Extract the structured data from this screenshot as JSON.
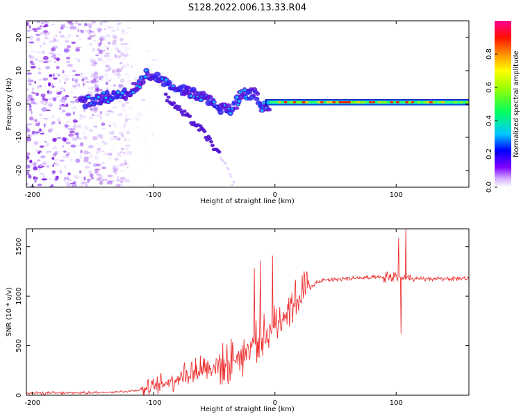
{
  "title": "S128.2022.006.13.33.R04",
  "chart_data": [
    {
      "type": "heatmap",
      "panel": "spectrogram",
      "xlabel": "Height of straight line (km)",
      "ylabel": "Frequency (Hz)",
      "xlim": [
        -205,
        160
      ],
      "ylim": [
        -25,
        25
      ],
      "x_ticks": [
        -200,
        -100,
        0,
        100
      ],
      "x_tick_labels": [
        "-200",
        "-100",
        "0",
        "100"
      ],
      "y_ticks": [
        -20,
        -10,
        0,
        10,
        20
      ],
      "y_tick_labels": [
        "-20",
        "-10",
        "0",
        "10",
        "20"
      ],
      "colorbar": {
        "label": "Normalized spectral amplitude",
        "range": [
          0,
          1
        ],
        "ticks": [
          0.0,
          0.2,
          0.4,
          0.6,
          0.8
        ],
        "tick_labels": [
          "0.0",
          "0.2",
          "0.4",
          "0.6",
          "0.8"
        ],
        "colors": [
          "#ffffff",
          "#c080ff",
          "#8000ff",
          "#0000ff",
          "#00c8ff",
          "#00ff00",
          "#ffff00",
          "#ff8000",
          "#ff0000",
          "#ff0080"
        ]
      },
      "features": {
        "noise_region_km": [
          -205,
          -120
        ],
        "carrier_track": [
          {
            "x": -160,
            "f": 0.5
          },
          {
            "x": -140,
            "f": 2
          },
          {
            "x": -120,
            "f": 3
          },
          {
            "x": -105,
            "f": 9
          },
          {
            "x": -90,
            "f": 7
          },
          {
            "x": -75,
            "f": 4
          },
          {
            "x": -60,
            "f": 2
          },
          {
            "x": -45,
            "f": -1
          },
          {
            "x": -35,
            "f": -2
          },
          {
            "x": -28,
            "f": 3
          },
          {
            "x": -15,
            "f": 3
          },
          {
            "x": -10,
            "f": -1
          },
          {
            "x": 0,
            "f": 0
          },
          {
            "x": 50,
            "f": 0.5
          },
          {
            "x": 100,
            "f": 0.5
          },
          {
            "x": 160,
            "f": 0.6
          }
        ],
        "secondary_track": [
          {
            "x": -90,
            "f": 2
          },
          {
            "x": -75,
            "f": -3
          },
          {
            "x": -60,
            "f": -8
          },
          {
            "x": -50,
            "f": -13
          },
          {
            "x": -40,
            "f": -19
          },
          {
            "x": -33,
            "f": -25
          }
        ]
      }
    },
    {
      "type": "line",
      "panel": "snr",
      "series_name": "SNR",
      "color": "#ee3030",
      "xlabel": "Height of straight line (km)",
      "ylabel": "SNR (10 * v/v)",
      "xlim": [
        -205,
        160
      ],
      "ylim": [
        0,
        1680
      ],
      "x_ticks": [
        -200,
        -100,
        0,
        100
      ],
      "x_tick_labels": [
        "-200",
        "-100",
        "0",
        "100"
      ],
      "y_ticks": [
        0,
        500,
        1000,
        1500
      ],
      "y_tick_labels": [
        "0",
        "500",
        "1000",
        "1500"
      ],
      "trend": {
        "x": [
          -205,
          -150,
          -120,
          -100,
          -80,
          -60,
          -40,
          -25,
          -10,
          0,
          10,
          20,
          30,
          40,
          60,
          80,
          95,
          100,
          105,
          110,
          130,
          160
        ],
        "y": [
          20,
          25,
          40,
          80,
          180,
          270,
          320,
          430,
          600,
          700,
          860,
          1000,
          1110,
          1160,
          1180,
          1185,
          1190,
          1200,
          1180,
          1170,
          1175,
          1180
        ]
      },
      "spikes": [
        {
          "x": -17,
          "y": 1280
        },
        {
          "x": -12,
          "y": 1360
        },
        {
          "x": -2,
          "y": 1410
        },
        {
          "x": 102,
          "y": 1590
        },
        {
          "x": 104,
          "y": 620
        },
        {
          "x": 108,
          "y": 1680
        }
      ]
    }
  ]
}
